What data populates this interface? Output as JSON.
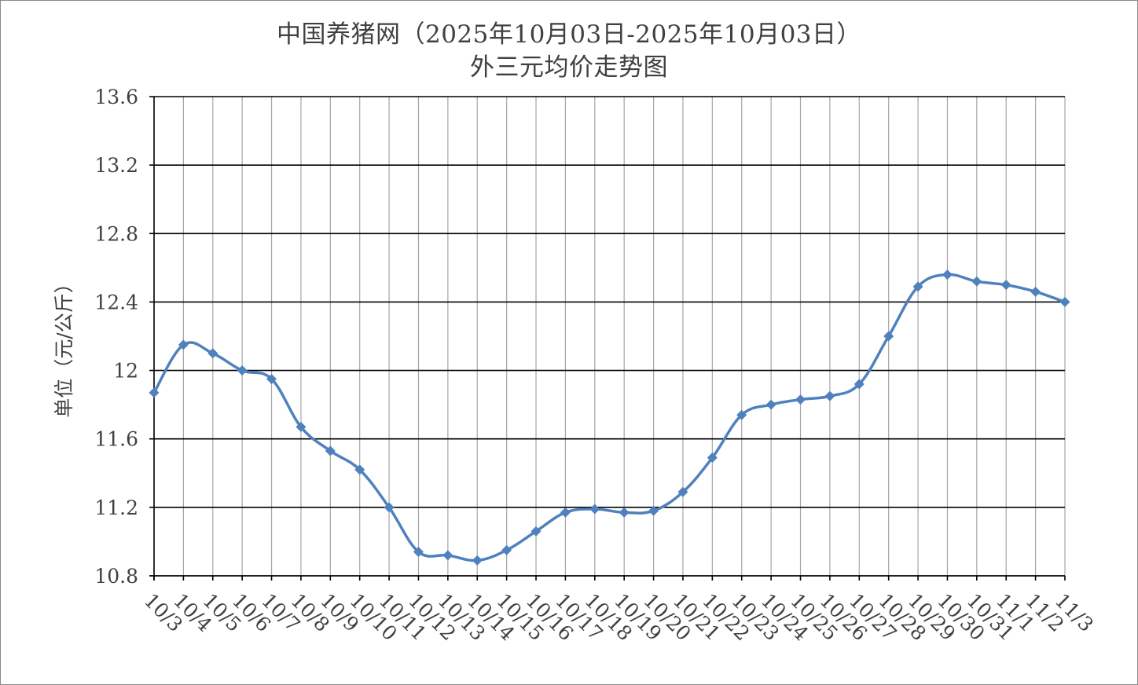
{
  "chart_data": {
    "type": "line",
    "title": "中国养猪网（2025年10月03日-2025年10月03日）",
    "subtitle": "外三元均价走势图",
    "xlabel": "",
    "ylabel": "单位（元/公斤）",
    "ylim": [
      10.8,
      13.6
    ],
    "yticks": [
      "10.8",
      "11.2",
      "11.6",
      "12",
      "12.4",
      "12.8",
      "13.2",
      "13.6"
    ],
    "grid": true,
    "legend": "none",
    "line_color": "#4f81bd",
    "categories": [
      "10/3",
      "10/4",
      "10/5",
      "10/6",
      "10/7",
      "10/8",
      "10/9",
      "10/10",
      "10/11",
      "10/12",
      "10/13",
      "10/14",
      "10/15",
      "10/16",
      "10/17",
      "10/18",
      "10/19",
      "10/20",
      "10/21",
      "10/22",
      "10/23",
      "10/24",
      "10/25",
      "10/26",
      "10/27",
      "10/28",
      "10/29",
      "10/30",
      "10/31",
      "11/1",
      "11/2",
      "11/3"
    ],
    "series": [
      {
        "values": [
          11.87,
          12.15,
          12.1,
          12.0,
          11.95,
          11.67,
          11.53,
          11.42,
          11.2,
          10.94,
          10.92,
          10.89,
          10.95,
          11.06,
          11.17,
          11.19,
          11.17,
          11.18,
          11.29,
          11.49,
          11.74,
          11.8,
          11.83,
          11.85,
          11.92,
          12.2,
          12.49,
          12.56,
          12.52,
          12.5,
          12.46,
          12.4
        ]
      }
    ]
  }
}
